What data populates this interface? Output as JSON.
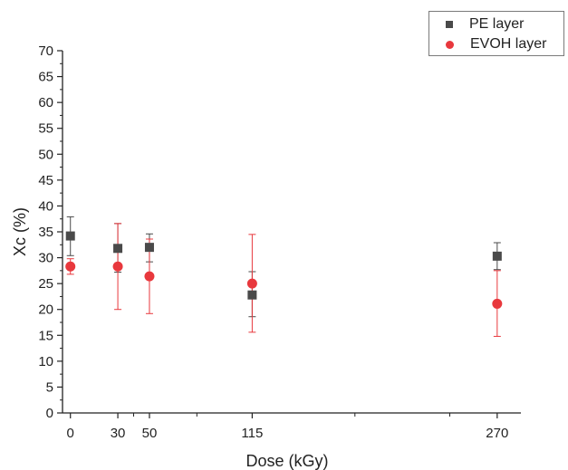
{
  "chart_data": {
    "type": "scatter",
    "title": "",
    "xlabel": "Dose (kGy)",
    "ylabel": "Xc (%)",
    "xlim": [
      -5,
      285
    ],
    "ylim": [
      0,
      70
    ],
    "xticks": [
      0,
      30,
      50,
      115,
      270
    ],
    "yticks": [
      0,
      5,
      10,
      15,
      20,
      25,
      30,
      35,
      40,
      45,
      50,
      55,
      60,
      65,
      70
    ],
    "grid": false,
    "legend_position": "top-right",
    "series": [
      {
        "name": "PE layer",
        "marker": "square",
        "color": "#4a4a4a",
        "x": [
          0,
          30,
          50,
          115,
          270
        ],
        "y": [
          34.2,
          31.8,
          32.0,
          22.8,
          30.3
        ],
        "err_low": [
          30.4,
          27.2,
          29.2,
          18.6,
          27.7
        ],
        "err_high": [
          37.9,
          36.6,
          34.6,
          27.3,
          32.9
        ]
      },
      {
        "name": "EVOH layer",
        "marker": "circle",
        "color": "#e8383d",
        "x": [
          0,
          30,
          50,
          115,
          270
        ],
        "y": [
          28.3,
          28.3,
          26.4,
          25.0,
          21.1
        ],
        "err_low": [
          26.8,
          20.0,
          19.2,
          15.6,
          14.8
        ],
        "err_high": [
          29.8,
          36.6,
          33.6,
          34.5,
          27.5
        ]
      }
    ]
  }
}
